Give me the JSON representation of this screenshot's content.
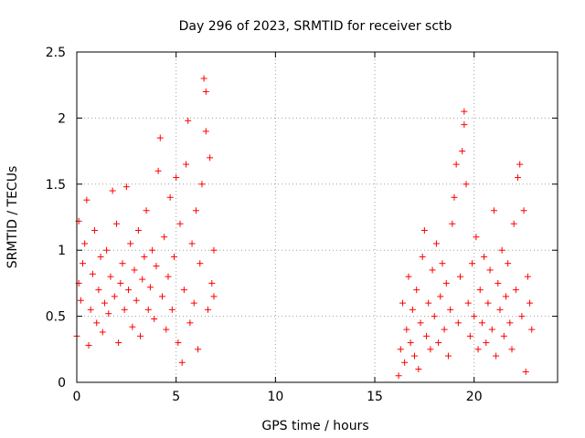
{
  "chart_data": {
    "type": "scatter",
    "title": "Day 296 of 2023, SRMTID for receiver sctb",
    "xlabel": "GPS time / hours",
    "ylabel": "SRMTID / TECUs",
    "xlim": [
      0,
      24.2
    ],
    "ylim": [
      0,
      2.5
    ],
    "x_ticks": [
      0,
      5,
      10,
      15,
      20
    ],
    "x_tick_labels": [
      "0",
      "5",
      "10",
      "15",
      "20"
    ],
    "y_ticks": [
      0,
      0.5,
      1,
      1.5,
      2,
      2.5
    ],
    "y_tick_labels": [
      "0",
      "0.5",
      "1",
      "1.5",
      "2",
      "2.5"
    ],
    "grid": true,
    "marker": "+",
    "color": "#ff0000",
    "series": [
      {
        "name": "sctb",
        "points": [
          [
            0.0,
            0.35
          ],
          [
            0.1,
            1.22
          ],
          [
            0.1,
            0.75
          ],
          [
            0.2,
            0.62
          ],
          [
            0.3,
            0.9
          ],
          [
            0.4,
            1.05
          ],
          [
            0.5,
            1.38
          ],
          [
            0.6,
            0.28
          ],
          [
            0.7,
            0.55
          ],
          [
            0.8,
            0.82
          ],
          [
            0.9,
            1.15
          ],
          [
            1.0,
            0.45
          ],
          [
            1.1,
            0.7
          ],
          [
            1.2,
            0.95
          ],
          [
            1.3,
            0.38
          ],
          [
            1.4,
            0.6
          ],
          [
            1.5,
            1.0
          ],
          [
            1.6,
            0.52
          ],
          [
            1.7,
            0.8
          ],
          [
            1.8,
            1.45
          ],
          [
            1.9,
            0.65
          ],
          [
            2.0,
            1.2
          ],
          [
            2.1,
            0.3
          ],
          [
            2.2,
            0.75
          ],
          [
            2.3,
            0.9
          ],
          [
            2.4,
            0.55
          ],
          [
            2.5,
            1.48
          ],
          [
            2.6,
            0.7
          ],
          [
            2.7,
            1.05
          ],
          [
            2.8,
            0.42
          ],
          [
            2.9,
            0.85
          ],
          [
            3.0,
            0.62
          ],
          [
            3.1,
            1.15
          ],
          [
            3.2,
            0.35
          ],
          [
            3.3,
            0.78
          ],
          [
            3.4,
            0.95
          ],
          [
            3.5,
            1.3
          ],
          [
            3.6,
            0.55
          ],
          [
            3.7,
            0.72
          ],
          [
            3.8,
            1.0
          ],
          [
            3.9,
            0.48
          ],
          [
            4.0,
            0.88
          ],
          [
            4.1,
            1.6
          ],
          [
            4.2,
            1.85
          ],
          [
            4.3,
            0.65
          ],
          [
            4.4,
            1.1
          ],
          [
            4.5,
            0.4
          ],
          [
            4.6,
            0.8
          ],
          [
            4.7,
            1.4
          ],
          [
            4.8,
            0.55
          ],
          [
            4.9,
            0.95
          ],
          [
            5.0,
            1.55
          ],
          [
            5.1,
            0.3
          ],
          [
            5.2,
            1.2
          ],
          [
            5.3,
            0.15
          ],
          [
            5.4,
            0.7
          ],
          [
            5.5,
            1.65
          ],
          [
            5.6,
            1.98
          ],
          [
            5.7,
            0.45
          ],
          [
            5.8,
            1.05
          ],
          [
            5.9,
            0.6
          ],
          [
            6.0,
            1.3
          ],
          [
            6.1,
            0.25
          ],
          [
            6.2,
            0.9
          ],
          [
            6.3,
            1.5
          ],
          [
            6.4,
            2.3
          ],
          [
            6.5,
            2.2
          ],
          [
            6.5,
            1.9
          ],
          [
            6.6,
            0.55
          ],
          [
            6.7,
            1.7
          ],
          [
            6.8,
            0.75
          ],
          [
            6.9,
            1.0
          ],
          [
            6.9,
            0.65
          ],
          [
            16.2,
            0.05
          ],
          [
            16.3,
            0.25
          ],
          [
            16.4,
            0.6
          ],
          [
            16.5,
            0.15
          ],
          [
            16.6,
            0.4
          ],
          [
            16.7,
            0.8
          ],
          [
            16.8,
            0.3
          ],
          [
            16.9,
            0.55
          ],
          [
            17.0,
            0.2
          ],
          [
            17.1,
            0.7
          ],
          [
            17.2,
            0.1
          ],
          [
            17.3,
            0.45
          ],
          [
            17.4,
            0.95
          ],
          [
            17.5,
            1.15
          ],
          [
            17.6,
            0.35
          ],
          [
            17.7,
            0.6
          ],
          [
            17.8,
            0.25
          ],
          [
            17.9,
            0.85
          ],
          [
            18.0,
            0.5
          ],
          [
            18.1,
            1.05
          ],
          [
            18.2,
            0.3
          ],
          [
            18.3,
            0.65
          ],
          [
            18.4,
            0.9
          ],
          [
            18.5,
            0.4
          ],
          [
            18.6,
            0.75
          ],
          [
            18.7,
            0.2
          ],
          [
            18.8,
            0.55
          ],
          [
            18.9,
            1.2
          ],
          [
            19.0,
            1.4
          ],
          [
            19.1,
            1.65
          ],
          [
            19.2,
            0.45
          ],
          [
            19.3,
            0.8
          ],
          [
            19.4,
            1.75
          ],
          [
            19.5,
            2.05
          ],
          [
            19.5,
            1.95
          ],
          [
            19.6,
            1.5
          ],
          [
            19.7,
            0.6
          ],
          [
            19.8,
            0.35
          ],
          [
            19.9,
            0.9
          ],
          [
            20.0,
            0.5
          ],
          [
            20.1,
            1.1
          ],
          [
            20.2,
            0.25
          ],
          [
            20.3,
            0.7
          ],
          [
            20.4,
            0.45
          ],
          [
            20.5,
            0.95
          ],
          [
            20.6,
            0.3
          ],
          [
            20.7,
            0.6
          ],
          [
            20.8,
            0.85
          ],
          [
            20.9,
            0.4
          ],
          [
            21.0,
            1.3
          ],
          [
            21.1,
            0.2
          ],
          [
            21.2,
            0.75
          ],
          [
            21.3,
            0.55
          ],
          [
            21.4,
            1.0
          ],
          [
            21.5,
            0.35
          ],
          [
            21.6,
            0.65
          ],
          [
            21.7,
            0.9
          ],
          [
            21.8,
            0.45
          ],
          [
            21.9,
            0.25
          ],
          [
            22.0,
            1.2
          ],
          [
            22.1,
            0.7
          ],
          [
            22.2,
            1.55
          ],
          [
            22.3,
            1.65
          ],
          [
            22.4,
            0.5
          ],
          [
            22.5,
            1.3
          ],
          [
            22.6,
            0.08
          ],
          [
            22.7,
            0.8
          ],
          [
            22.8,
            0.6
          ],
          [
            22.9,
            0.4
          ]
        ]
      }
    ]
  }
}
